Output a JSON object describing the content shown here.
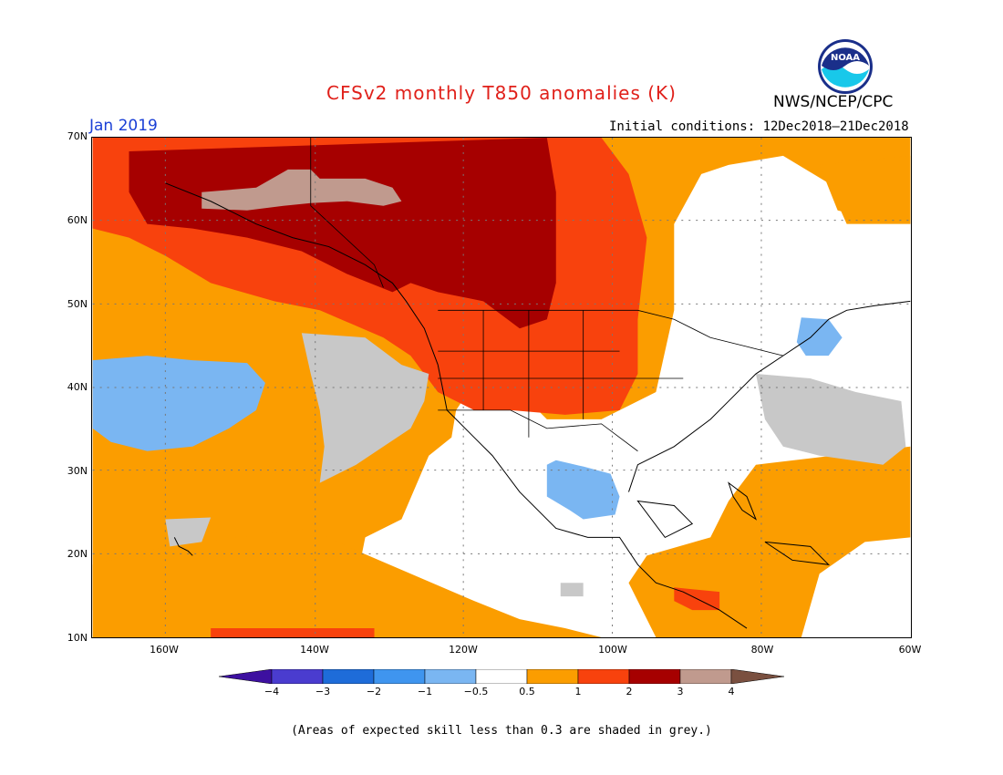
{
  "header": {
    "title": "CFSv2 monthly T850 anomalies (K)",
    "valid_month": "Jan 2019",
    "initial_conditions": "Initial conditions: 12Dec2018–21Dec2018",
    "agency": "NWS/NCEP/CPC",
    "logo_text": "NOAA"
  },
  "map": {
    "lat_labels": [
      "70N",
      "60N",
      "50N",
      "40N",
      "30N",
      "20N",
      "10N"
    ],
    "lon_labels": [
      "160W",
      "140W",
      "120W",
      "100W",
      "80W",
      "60W"
    ],
    "colors": {
      "lt_neg4": "#3d10a0",
      "neg4_neg3": "#4a3ccf",
      "neg3_neg2": "#1e6cd9",
      "neg2_neg1": "#3f95ef",
      "neg1_neg05": "#7ab6f2",
      "neutral": "#ffffff",
      "p05_1": "#fb9d00",
      "p1_2": "#f8420d",
      "p2_3": "#a60000",
      "p3_4": "#c09a8e",
      "gt4": "#7a5040",
      "low_skill": "#c8c8c8"
    }
  },
  "colorbar": {
    "labels": [
      "−4",
      "−3",
      "−2",
      "−1",
      "−0.5",
      "0.5",
      "1",
      "2",
      "3",
      "4"
    ],
    "segment_colors": [
      "#4a3ccf",
      "#1e6cd9",
      "#3f95ef",
      "#7ab6f2",
      "#ffffff",
      "#fb9d00",
      "#f8420d",
      "#a60000",
      "#c09a8e"
    ],
    "low_end_color": "#3d10a0",
    "high_end_color": "#7a5040"
  },
  "footnote": "(Areas of expected skill less than 0.3 are shaded in grey.)"
}
